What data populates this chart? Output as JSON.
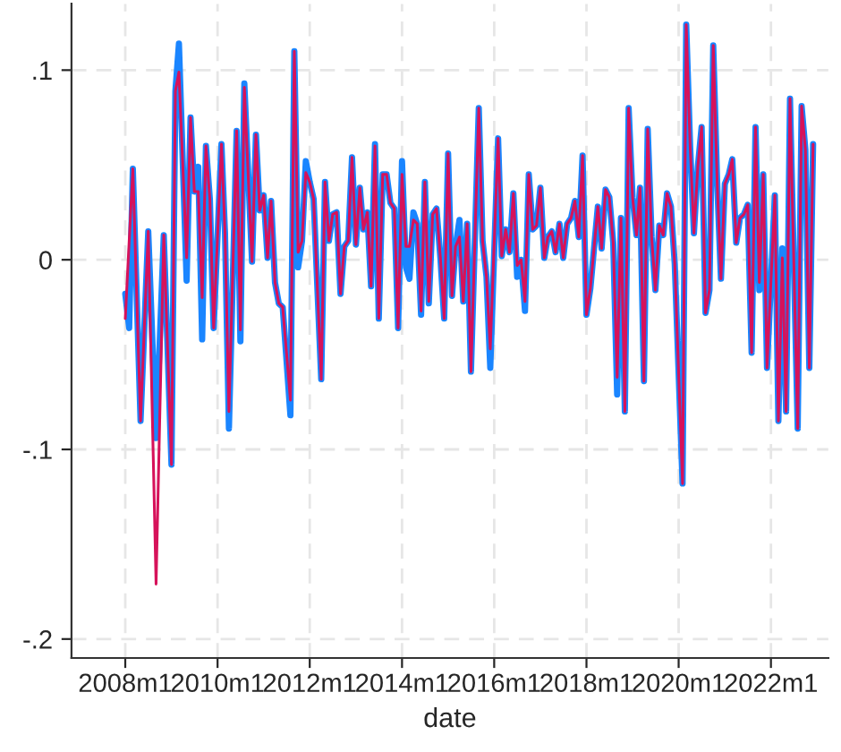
{
  "chart_data": {
    "type": "line",
    "xlabel": "date",
    "series": [
      {
        "color": "#1a85ff",
        "x": [
          "2008-01",
          "2008-02",
          "2008-03",
          "2008-05",
          "2008-07",
          "2008-09",
          "2008-11",
          "2009-01",
          "2009-02",
          "2009-03",
          "2009-05",
          "2009-06",
          "2009-07",
          "2009-08",
          "2009-09",
          "2009-10",
          "2009-11",
          "2009-12",
          "2010-02",
          "2010-03",
          "2010-04",
          "2010-06",
          "2010-07",
          "2010-08",
          "2010-10",
          "2010-11",
          "2010-12",
          "2011-01",
          "2011-02",
          "2011-03",
          "2011-04",
          "2011-05",
          "2011-06",
          "2011-08",
          "2011-09",
          "2011-10",
          "2011-11",
          "2011-12",
          "2012-01",
          "2012-02",
          "2012-04",
          "2012-05",
          "2012-06",
          "2012-07",
          "2012-08",
          "2012-09",
          "2012-10",
          "2012-11",
          "2012-12",
          "2013-01",
          "2013-02",
          "2013-03",
          "2013-04",
          "2013-05",
          "2013-06",
          "2013-07",
          "2013-08",
          "2013-09",
          "2013-10",
          "2013-11",
          "2013-12",
          "2014-01",
          "2014-02",
          "2014-03",
          "2014-04",
          "2014-05",
          "2014-06",
          "2014-07",
          "2014-08",
          "2014-09",
          "2014-10",
          "2014-11",
          "2014-12",
          "2015-01",
          "2015-02",
          "2015-03",
          "2015-04",
          "2015-05",
          "2015-06",
          "2015-07",
          "2015-09",
          "2015-10",
          "2015-11",
          "2015-12",
          "2016-02",
          "2016-03",
          "2016-04",
          "2016-05",
          "2016-06",
          "2016-07",
          "2016-08",
          "2016-09",
          "2016-10",
          "2016-11",
          "2016-12",
          "2017-01",
          "2017-02",
          "2017-03",
          "2017-04",
          "2017-05",
          "2017-06",
          "2017-07",
          "2017-08",
          "2017-09",
          "2017-10",
          "2017-11",
          "2017-12",
          "2018-01",
          "2018-02",
          "2018-04",
          "2018-05",
          "2018-06",
          "2018-07",
          "2018-08",
          "2018-09",
          "2018-10",
          "2018-11",
          "2018-12",
          "2019-01",
          "2019-02",
          "2019-03",
          "2019-04",
          "2019-05",
          "2019-06",
          "2019-07",
          "2019-08",
          "2019-09",
          "2019-10",
          "2019-11",
          "2019-12",
          "2020-02",
          "2020-03",
          "2020-04",
          "2020-05",
          "2020-06",
          "2020-07",
          "2020-08",
          "2020-09",
          "2020-10",
          "2020-11",
          "2020-12",
          "2021-01",
          "2021-02",
          "2021-03",
          "2021-04",
          "2021-05",
          "2021-06",
          "2021-07",
          "2021-08",
          "2021-09",
          "2021-10",
          "2021-11",
          "2021-12",
          "2022-02",
          "2022-03",
          "2022-04",
          "2022-05",
          "2022-06",
          "2022-08",
          "2022-09",
          "2022-10",
          "2022-11",
          "2022-12"
        ],
        "values": [
          -0.018,
          -0.036,
          0.048,
          -0.085,
          0.015,
          -0.094,
          0.013,
          -0.108,
          0.089,
          0.114,
          -0.011,
          0.075,
          0.036,
          0.049,
          -0.042,
          0.06,
          0.032,
          -0.036,
          0.061,
          0.014,
          -0.089,
          0.068,
          -0.043,
          0.093,
          -0.001,
          0.066,
          0.026,
          0.034,
          0.001,
          0.031,
          -0.012,
          -0.023,
          -0.025,
          -0.082,
          0.11,
          -0.004,
          0.01,
          0.052,
          0.041,
          0.032,
          -0.063,
          0.041,
          0.01,
          0.024,
          0.025,
          -0.018,
          0.007,
          0.01,
          0.054,
          0.008,
          0.038,
          0.016,
          0.025,
          -0.014,
          0.061,
          -0.031,
          0.045,
          0.045,
          0.03,
          0.027,
          -0.036,
          0.052,
          -0.004,
          -0.01,
          0.025,
          0.019,
          -0.029,
          0.041,
          -0.023,
          0.024,
          0.027,
          0.001,
          -0.031,
          0.056,
          -0.019,
          0.007,
          0.021,
          -0.022,
          0.019,
          -0.059,
          0.08,
          0.01,
          -0.009,
          -0.057,
          0.064,
          0.002,
          0.016,
          0.004,
          0.035,
          -0.009,
          0.0,
          -0.027,
          0.045,
          0.016,
          0.018,
          0.038,
          0.001,
          0.012,
          0.015,
          0.004,
          0.019,
          0.001,
          0.019,
          0.022,
          0.031,
          0.012,
          0.055,
          -0.029,
          -0.015,
          0.028,
          0.006,
          0.037,
          0.033,
          0.009,
          -0.071,
          0.022,
          -0.08,
          0.08,
          0.033,
          0.013,
          0.038,
          -0.064,
          0.069,
          0.012,
          -0.016,
          0.018,
          0.013,
          0.035,
          0.028,
          -0.002,
          -0.118,
          0.124,
          0.06,
          0.014,
          0.049,
          0.07,
          -0.028,
          -0.016,
          0.113,
          0.041,
          -0.01,
          0.04,
          0.045,
          0.053,
          0.009,
          0.022,
          0.024,
          0.029,
          -0.049,
          0.07,
          -0.016,
          0.045,
          -0.057,
          0.034,
          -0.085,
          0.006,
          -0.08,
          0.085,
          -0.089,
          0.081,
          0.058,
          -0.057,
          0.061
        ]
      },
      {
        "color": "#d6125a",
        "x": [
          "2008-01",
          "2008-03",
          "2008-05",
          "2008-07",
          "2008-09",
          "2008-11",
          "2009-01",
          "2009-02",
          "2009-03",
          "2009-05",
          "2009-06",
          "2009-07",
          "2009-08",
          "2009-09",
          "2009-10",
          "2009-11",
          "2009-12",
          "2010-02",
          "2010-03",
          "2010-04",
          "2010-06",
          "2010-07",
          "2010-08",
          "2010-10",
          "2010-11",
          "2010-12",
          "2011-01",
          "2011-02",
          "2011-03",
          "2011-04",
          "2011-05",
          "2011-06",
          "2011-08",
          "2011-09",
          "2011-10",
          "2011-11",
          "2011-12",
          "2012-01",
          "2012-02",
          "2012-04",
          "2012-05",
          "2012-06",
          "2012-07",
          "2012-08",
          "2012-09",
          "2012-10",
          "2012-11",
          "2012-12",
          "2013-01",
          "2013-02",
          "2013-03",
          "2013-04",
          "2013-05",
          "2013-06",
          "2013-07",
          "2013-08",
          "2013-09",
          "2013-10",
          "2013-11",
          "2013-12",
          "2014-01",
          "2014-02",
          "2014-03",
          "2014-04",
          "2014-05",
          "2014-06",
          "2014-07",
          "2014-08",
          "2014-09",
          "2014-10",
          "2014-11",
          "2014-12",
          "2015-01",
          "2015-02",
          "2015-03",
          "2015-04",
          "2015-05",
          "2015-06",
          "2015-07",
          "2015-09",
          "2015-10",
          "2015-11",
          "2015-12",
          "2016-02",
          "2016-03",
          "2016-04",
          "2016-05",
          "2016-06",
          "2016-07",
          "2016-08",
          "2016-09",
          "2016-10",
          "2016-11",
          "2016-12",
          "2017-01",
          "2017-02",
          "2017-03",
          "2017-04",
          "2017-05",
          "2017-06",
          "2017-07",
          "2017-08",
          "2017-09",
          "2017-10",
          "2017-11",
          "2017-12",
          "2018-01",
          "2018-02",
          "2018-04",
          "2018-05",
          "2018-06",
          "2018-07",
          "2018-08",
          "2018-09",
          "2018-10",
          "2018-11",
          "2018-12",
          "2019-01",
          "2019-02",
          "2019-03",
          "2019-04",
          "2019-05",
          "2019-06",
          "2019-07",
          "2019-08",
          "2019-09",
          "2019-10",
          "2019-11",
          "2019-12",
          "2020-02",
          "2020-03",
          "2020-04",
          "2020-05",
          "2020-06",
          "2020-07",
          "2020-08",
          "2020-09",
          "2020-10",
          "2020-11",
          "2020-12",
          "2021-01",
          "2021-02",
          "2021-03",
          "2021-04",
          "2021-05",
          "2021-06",
          "2021-07",
          "2021-08",
          "2021-09",
          "2021-10",
          "2021-11",
          "2021-12",
          "2022-02",
          "2022-03",
          "2022-04",
          "2022-05",
          "2022-06",
          "2022-08",
          "2022-09",
          "2022-10",
          "2022-11",
          "2022-12"
        ],
        "values": [
          -0.031,
          0.048,
          -0.085,
          0.015,
          -0.171,
          0.013,
          -0.108,
          0.089,
          0.099,
          0.001,
          0.075,
          0.036,
          0.036,
          -0.02,
          0.06,
          0.032,
          -0.036,
          0.061,
          0.014,
          -0.08,
          0.068,
          -0.037,
          0.091,
          -0.001,
          0.066,
          0.026,
          0.034,
          0.001,
          0.031,
          -0.012,
          -0.023,
          -0.025,
          -0.074,
          0.11,
          0.004,
          0.01,
          0.046,
          0.041,
          0.032,
          -0.063,
          0.041,
          0.01,
          0.024,
          0.025,
          -0.018,
          0.007,
          0.01,
          0.054,
          0.008,
          0.038,
          0.016,
          0.025,
          -0.014,
          0.06,
          -0.031,
          0.045,
          0.045,
          0.03,
          0.027,
          -0.036,
          0.045,
          0.007,
          0.007,
          0.021,
          0.019,
          -0.027,
          0.041,
          -0.022,
          0.024,
          0.027,
          0.001,
          -0.031,
          0.056,
          -0.019,
          0.007,
          0.012,
          -0.022,
          0.019,
          -0.059,
          0.08,
          0.01,
          -0.009,
          -0.047,
          0.064,
          0.002,
          0.016,
          0.004,
          0.035,
          -0.003,
          0.0,
          -0.022,
          0.045,
          0.016,
          0.018,
          0.038,
          0.001,
          0.012,
          0.015,
          0.004,
          0.019,
          0.001,
          0.019,
          0.022,
          0.031,
          0.012,
          0.055,
          -0.029,
          -0.015,
          0.028,
          0.006,
          0.037,
          0.033,
          0.009,
          -0.062,
          0.022,
          -0.08,
          0.08,
          0.033,
          0.013,
          0.038,
          -0.064,
          0.069,
          0.012,
          -0.016,
          0.018,
          0.013,
          0.035,
          0.028,
          -0.002,
          -0.118,
          0.124,
          0.06,
          0.014,
          0.049,
          0.07,
          -0.028,
          -0.016,
          0.113,
          0.041,
          -0.01,
          0.04,
          0.045,
          0.053,
          0.009,
          0.022,
          0.024,
          0.029,
          -0.049,
          0.07,
          -0.012,
          0.045,
          -0.057,
          0.034,
          -0.085,
          0.001,
          -0.08,
          0.085,
          -0.089,
          0.081,
          0.058,
          -0.057,
          0.061
        ]
      }
    ],
    "xlim": [
      "2006-11",
      "2023-04"
    ],
    "xticks": [
      {
        "value": "2008-01",
        "label": "2008m1"
      },
      {
        "value": "2010-01",
        "label": "2010m1"
      },
      {
        "value": "2012-01",
        "label": "2012m1"
      },
      {
        "value": "2014-01",
        "label": "2014m1"
      },
      {
        "value": "2016-01",
        "label": "2016m1"
      },
      {
        "value": "2018-01",
        "label": "2018m1"
      },
      {
        "value": "2020-01",
        "label": "2020m1"
      },
      {
        "value": "2022-01",
        "label": "2022m1"
      }
    ],
    "ylim": [
      -0.21,
      0.135
    ],
    "yticks": [
      {
        "value": -0.2,
        "label": "-.2"
      },
      {
        "value": -0.1,
        "label": "-.1"
      },
      {
        "value": 0,
        "label": "0"
      },
      {
        "value": 0.1,
        "label": ".1"
      }
    ],
    "grid": true,
    "marker": "none",
    "line_style": "solid"
  }
}
